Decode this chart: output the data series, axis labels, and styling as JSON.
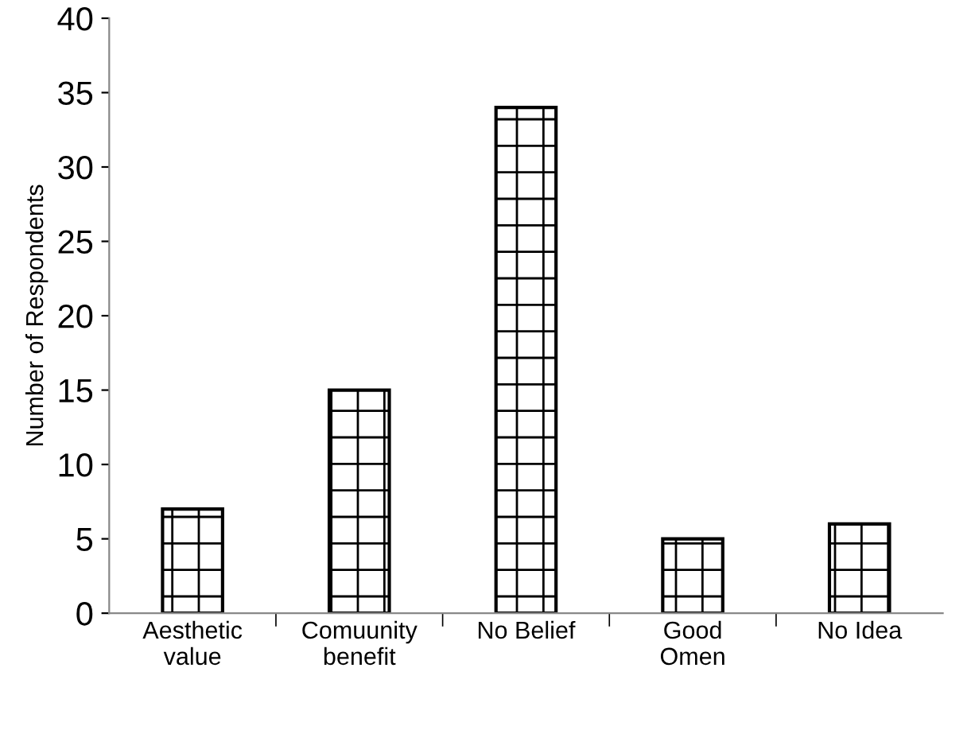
{
  "chart_data": {
    "type": "bar",
    "ylabel": "Number of Respondents",
    "categories": [
      "Aesthetic\nvalue",
      "Comuunity\nbenefit",
      "No Belief",
      "Good\nOmen",
      "No Idea"
    ],
    "values": [
      7,
      15,
      34,
      5,
      6
    ],
    "color": "#000000",
    "ylim": [
      0,
      40
    ],
    "yticks": [
      0,
      5,
      10,
      15,
      20,
      25,
      30,
      35,
      40
    ],
    "grid": false,
    "legend": false
  }
}
